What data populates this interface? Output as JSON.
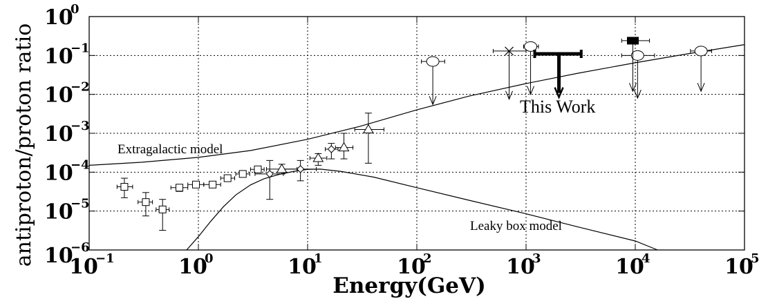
{
  "chart_data": {
    "type": "scatter",
    "xlabel": "Energy(GeV)",
    "ylabel": "antiproton/proton ratio",
    "x_scale": "log",
    "y_scale": "log",
    "xlim": [
      0.1,
      100000
    ],
    "ylim": [
      1e-06,
      1
    ],
    "grid": true,
    "x_ticks": [
      {
        "base": "10",
        "exp": "−1"
      },
      {
        "base": "10",
        "exp": "0"
      },
      {
        "base": "10",
        "exp": "1"
      },
      {
        "base": "10",
        "exp": "2"
      },
      {
        "base": "10",
        "exp": "3"
      },
      {
        "base": "10",
        "exp": "4"
      },
      {
        "base": "10",
        "exp": "5"
      }
    ],
    "y_ticks": [
      {
        "base": "10",
        "exp": "0"
      },
      {
        "base": "10",
        "exp": "−1"
      },
      {
        "base": "10",
        "exp": "−2"
      },
      {
        "base": "10",
        "exp": "−3"
      },
      {
        "base": "10",
        "exp": "−4"
      },
      {
        "base": "10",
        "exp": "−5"
      },
      {
        "base": "10",
        "exp": "−6"
      }
    ],
    "annotations": {
      "extragalactic": "Extragalactic model",
      "leaky": "Leaky box model",
      "this_work": "This Work"
    },
    "curves": [
      {
        "label_ref": "extragalactic",
        "x": [
          0.1,
          0.3,
          1,
          3,
          10,
          30,
          100,
          300,
          1000,
          3000,
          10000,
          30000,
          100000
        ],
        "y": [
          0.00015,
          0.00018,
          0.00024,
          0.00036,
          0.0007,
          0.0015,
          0.004,
          0.009,
          0.019,
          0.035,
          0.065,
          0.11,
          0.19
        ]
      },
      {
        "label_ref": "leaky",
        "x": [
          0.78,
          1,
          1.3,
          1.7,
          2.2,
          3,
          4,
          5.5,
          7.5,
          10,
          13,
          20,
          40,
          100,
          300,
          1000,
          3000,
          10000,
          16000
        ],
        "y": [
          1e-06,
          2.2e-06,
          5.5e-06,
          1.3e-05,
          2.6e-05,
          4.7e-05,
          6.8e-05,
          8.8e-05,
          0.000105,
          0.000118,
          0.00012,
          0.000105,
          7.5e-05,
          4e-05,
          1.9e-05,
          8.5e-06,
          3.9e-06,
          1.7e-06,
          1e-06
        ]
      }
    ],
    "series": [
      {
        "marker": "square",
        "points": [
          {
            "x": 0.21,
            "y": 4.2e-05,
            "xlo": 0.18,
            "xhi": 0.25,
            "ylo": 2.2e-05,
            "yhi": 7e-05
          },
          {
            "x": 0.33,
            "y": 1.7e-05,
            "xlo": 0.28,
            "xhi": 0.38,
            "ylo": 7.5e-06,
            "yhi": 3e-05
          },
          {
            "x": 0.47,
            "y": 1.1e-05,
            "xlo": 0.41,
            "xhi": 0.54,
            "ylo": 3.2e-06,
            "yhi": 2e-05
          },
          {
            "x": 0.67,
            "y": 4e-05,
            "xlo": 0.56,
            "xhi": 0.8,
            "ylo": 3.2e-05,
            "yhi": 4.8e-05
          },
          {
            "x": 0.95,
            "y": 4.8e-05,
            "xlo": 0.8,
            "xhi": 1.12,
            "ylo": 4.2e-05,
            "yhi": 5.5e-05
          },
          {
            "x": 1.35,
            "y": 4.8e-05,
            "xlo": 1.12,
            "xhi": 1.6,
            "ylo": 4.2e-05,
            "yhi": 5.5e-05
          },
          {
            "x": 1.85,
            "y": 7e-05,
            "xlo": 1.6,
            "xhi": 2.15,
            "ylo": 6e-05,
            "yhi": 8e-05
          },
          {
            "x": 2.55,
            "y": 9e-05,
            "xlo": 2.2,
            "xhi": 2.95,
            "ylo": 8e-05,
            "yhi": 0.0001
          },
          {
            "x": 3.5,
            "y": 0.000118,
            "xlo": 3.0,
            "xhi": 4.0,
            "ylo": 0.000105,
            "yhi": 0.00013
          }
        ]
      },
      {
        "marker": "diamond",
        "points": [
          {
            "x": 4.5,
            "y": 9e-05,
            "xlo": 3.3,
            "xhi": 6.0,
            "ylo": 2e-05,
            "yhi": 0.0002
          },
          {
            "x": 8.6,
            "y": 0.00012,
            "xlo": 6.0,
            "xhi": 12.0,
            "ylo": 6e-05,
            "yhi": 0.0002
          },
          {
            "x": 16.5,
            "y": 0.00039,
            "xlo": 14.5,
            "xhi": 19.0,
            "ylo": 0.00022,
            "yhi": 0.00055
          }
        ]
      },
      {
        "marker": "triangle",
        "points": [
          {
            "x": 5.8,
            "y": 0.00012,
            "xlo": 4.2,
            "xhi": 8.0,
            "ylo": 9e-05,
            "yhi": 0.00016
          },
          {
            "x": 12.5,
            "y": 0.00023,
            "xlo": 10.5,
            "xhi": 15.0,
            "ylo": 0.00015,
            "yhi": 0.0003
          },
          {
            "x": 21.5,
            "y": 0.00043,
            "xlo": 18.0,
            "xhi": 26.0,
            "ylo": 0.00022,
            "yhi": 0.001
          },
          {
            "x": 36.0,
            "y": 0.00125,
            "xlo": 27.0,
            "xhi": 50.0,
            "ylo": 0.00017,
            "yhi": 0.0033
          }
        ]
      },
      {
        "marker": "circle",
        "upper_limit": true,
        "points": [
          {
            "x": 140,
            "y": 0.07,
            "xlo": 110,
            "xhi": 180,
            "ydown": 0.0055
          },
          {
            "x": 1100,
            "y": 0.17,
            "xlo": 950,
            "xhi": 1300,
            "ydown": 0.01
          },
          {
            "x": 10500,
            "y": 0.1,
            "xlo": 7500,
            "xhi": 15000,
            "ydown": 0.008
          },
          {
            "x": 40000,
            "y": 0.13,
            "xlo": 32000,
            "xhi": 50000,
            "ydown": 0.012
          }
        ]
      },
      {
        "marker": "cross",
        "upper_limit": true,
        "points": [
          {
            "x": 700,
            "y": 0.13,
            "xlo": 500,
            "xhi": 1000,
            "ydown": 0.0075
          }
        ]
      },
      {
        "marker": "filled-square",
        "upper_limit": true,
        "points": [
          {
            "x": 9500,
            "y": 0.24,
            "xlo": 7500,
            "xhi": 13500,
            "ydown": 0.012
          }
        ]
      },
      {
        "marker": "this-work",
        "upper_limit": true,
        "points": [
          {
            "x": 2000,
            "y": 0.11,
            "xlo": 1200,
            "xhi": 3200,
            "ydown": 0.0085
          }
        ]
      }
    ]
  }
}
